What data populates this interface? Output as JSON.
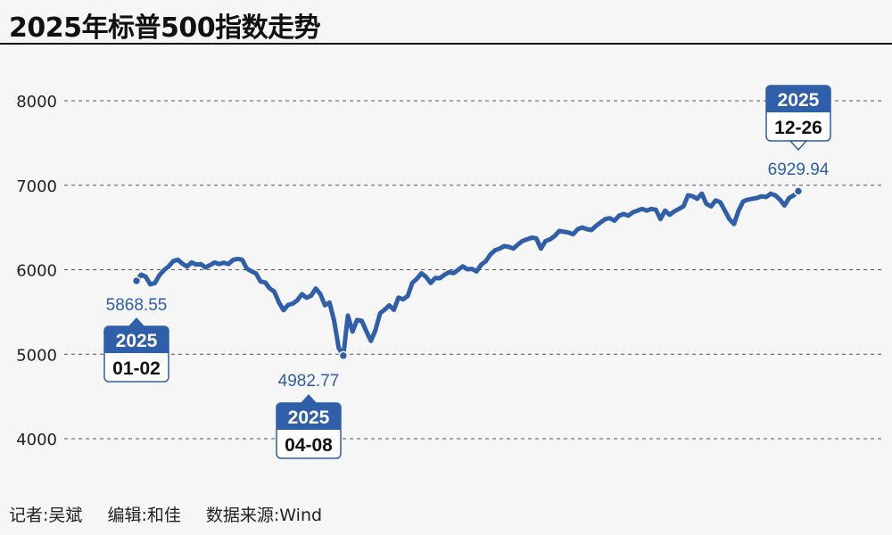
{
  "header": {
    "title": "2025年标普500指数走势"
  },
  "footer": {
    "reporter": "记者:吴斌",
    "editor": "编辑:和佳",
    "source": "数据来源:Wind"
  },
  "colors": {
    "line": "#2f5fa8",
    "badge": "#2f5fa8",
    "grid": "#555555"
  },
  "chart_data": {
    "type": "line",
    "title": "2025年标普500指数走势",
    "ylim": [
      4000,
      8000
    ],
    "yticks": [
      4000,
      5000,
      6000,
      7000,
      8000
    ],
    "grid": true,
    "series": [
      {
        "values": [
          5868.55,
          5942,
          5918,
          5827,
          5842,
          5937,
          5996,
          6039,
          6101,
          6118,
          6072,
          6038,
          6087,
          6061,
          6066,
          6026,
          6055,
          6086,
          6068,
          6083,
          6068,
          6115,
          6129,
          6118,
          6013,
          5983,
          5956,
          5861,
          5849,
          5778,
          5739,
          5614,
          5521,
          5583,
          5599,
          5638,
          5711,
          5668,
          5693,
          5777,
          5712,
          5580,
          5612,
          5396,
          5074,
          4982.77,
          5456,
          5269,
          5405,
          5396,
          5275,
          5158,
          5283,
          5485,
          5528,
          5578,
          5525,
          5670,
          5650,
          5688,
          5844,
          5892,
          5958,
          5916,
          5843,
          5902,
          5900,
          5940,
          5970,
          5960,
          6000,
          6040,
          6005,
          6010,
          5980,
          6060,
          6100,
          6180,
          6230,
          6250,
          6280,
          6270,
          6250,
          6300,
          6340,
          6360,
          6380,
          6370,
          6250,
          6340,
          6360,
          6400,
          6460,
          6450,
          6440,
          6420,
          6480,
          6500,
          6480,
          6470,
          6520,
          6560,
          6600,
          6610,
          6580,
          6640,
          6660,
          6640,
          6680,
          6700,
          6720,
          6700,
          6720,
          6710,
          6600,
          6700,
          6650,
          6690,
          6720,
          6750,
          6880,
          6870,
          6840,
          6900,
          6780,
          6750,
          6820,
          6800,
          6700,
          6600,
          6540,
          6700,
          6810,
          6830,
          6840,
          6850,
          6870,
          6860,
          6900,
          6880,
          6830,
          6760,
          6850,
          6880,
          6929.94
        ]
      }
    ],
    "annotations": [
      {
        "date_year": "2025",
        "date_md": "01-02",
        "value": "5868.55",
        "y": 5868.55
      },
      {
        "date_year": "2025",
        "date_md": "04-08",
        "value": "4982.77",
        "y": 4982.77
      },
      {
        "date_year": "2025",
        "date_md": "12-26",
        "value": "6929.94",
        "y": 6929.94
      }
    ]
  }
}
